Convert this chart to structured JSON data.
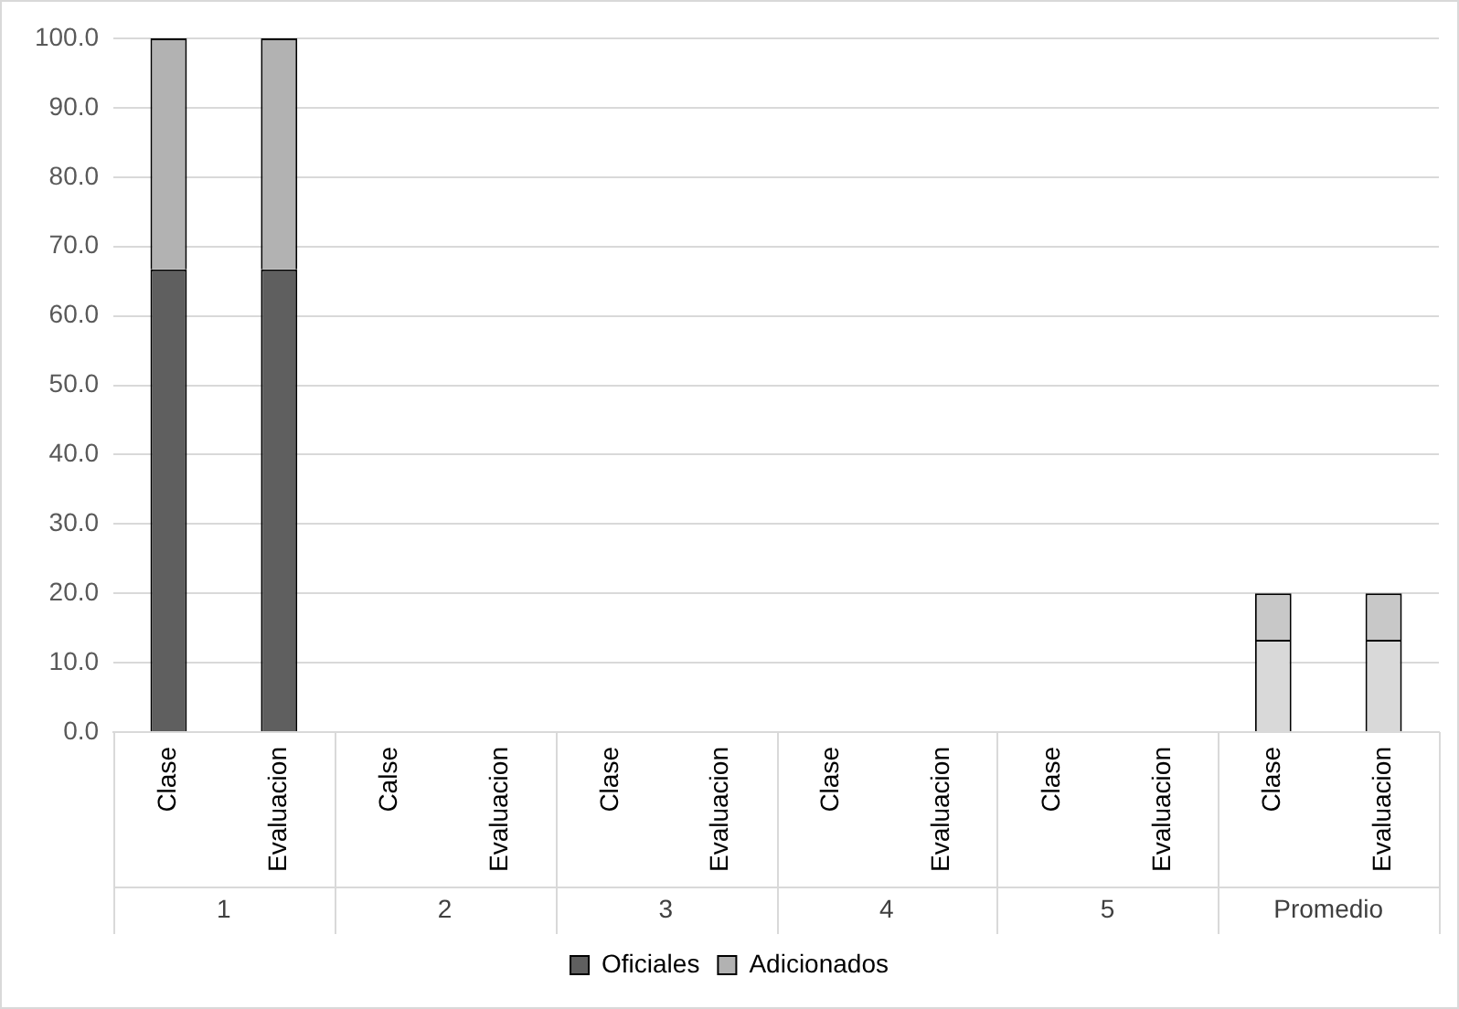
{
  "chart_data": {
    "type": "bar",
    "stacked": true,
    "categories": [
      "Clase",
      "Evaluacion",
      "Calse",
      "Evaluacion",
      "Clase",
      "Evaluacion",
      "Clase",
      "Evaluacion",
      "Clase",
      "Evaluacion",
      "Clase",
      "Evaluacion"
    ],
    "series": [
      {
        "name": "Oficiales",
        "color": "#5f5f5f",
        "colors": [
          "#5f5f5f",
          "#5f5f5f",
          "#5f5f5f",
          "#5f5f5f",
          "#5f5f5f",
          "#5f5f5f",
          "#5f5f5f",
          "#5f5f5f",
          "#5f5f5f",
          "#5f5f5f",
          "#d9d9d9",
          "#d9d9d9"
        ],
        "values": [
          66.7,
          66.7,
          0,
          0,
          0,
          0,
          0,
          0,
          0,
          0,
          13.3,
          13.3
        ]
      },
      {
        "name": "Adicionados",
        "color": "#b2b2b2",
        "colors": [
          "#b2b2b2",
          "#b2b2b2",
          "#b2b2b2",
          "#b2b2b2",
          "#b2b2b2",
          "#b2b2b2",
          "#b2b2b2",
          "#b2b2b2",
          "#b2b2b2",
          "#b2b2b2",
          "#c8c8c8",
          "#c8c8c8"
        ],
        "values": [
          33.3,
          33.3,
          0,
          0,
          0,
          0,
          0,
          0,
          0,
          0,
          6.7,
          6.7
        ]
      }
    ],
    "annotations": [
      "1",
      "2",
      "3",
      "4",
      "5",
      "Promedio"
    ],
    "ylim": [
      0,
      100
    ],
    "yticks": [
      {
        "value": 0,
        "label": "0.0"
      },
      {
        "value": 10,
        "label": "10.0"
      },
      {
        "value": 20,
        "label": "20.0"
      },
      {
        "value": 30,
        "label": "30.0"
      },
      {
        "value": 40,
        "label": "40.0"
      },
      {
        "value": 50,
        "label": "50.0"
      },
      {
        "value": 60,
        "label": "60.0"
      },
      {
        "value": 70,
        "label": "70.0"
      },
      {
        "value": 80,
        "label": "80.0"
      },
      {
        "value": 90,
        "label": "90.0"
      },
      {
        "value": 100,
        "label": "100.0"
      }
    ],
    "grid": "y",
    "legend": "bottom"
  }
}
